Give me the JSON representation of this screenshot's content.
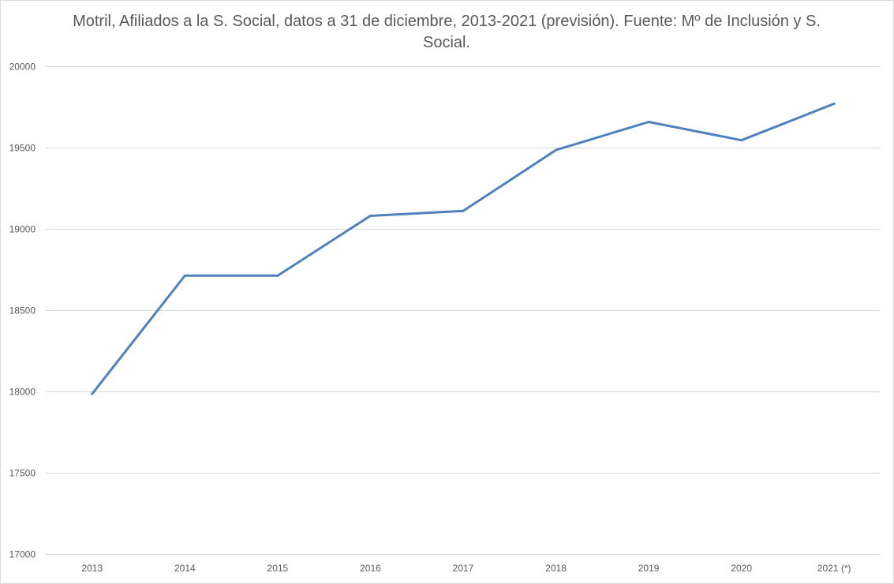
{
  "chart_data": {
    "type": "line",
    "title": "Motril, Afiliados a la S. Social, datos a 31 de diciembre, 2013-2021 (previsión). Fuente: Mº de Inclusión y S. Social.",
    "categories": [
      "2013",
      "2014",
      "2015",
      "2016",
      "2017",
      "2018",
      "2019",
      "2020",
      "2021 (*)"
    ],
    "series": [
      {
        "values": [
          17985,
          18712,
          18712,
          19080,
          19110,
          19485,
          19658,
          19545,
          19770
        ]
      }
    ],
    "ylim": [
      17000,
      20000
    ],
    "yticks": [
      17000,
      17500,
      18000,
      18500,
      19000,
      19500,
      20000
    ],
    "grid": true,
    "legend": "none",
    "colors": {
      "line": "#4f81bd",
      "grid": "#d9d9d9",
      "text": "#595959"
    }
  }
}
